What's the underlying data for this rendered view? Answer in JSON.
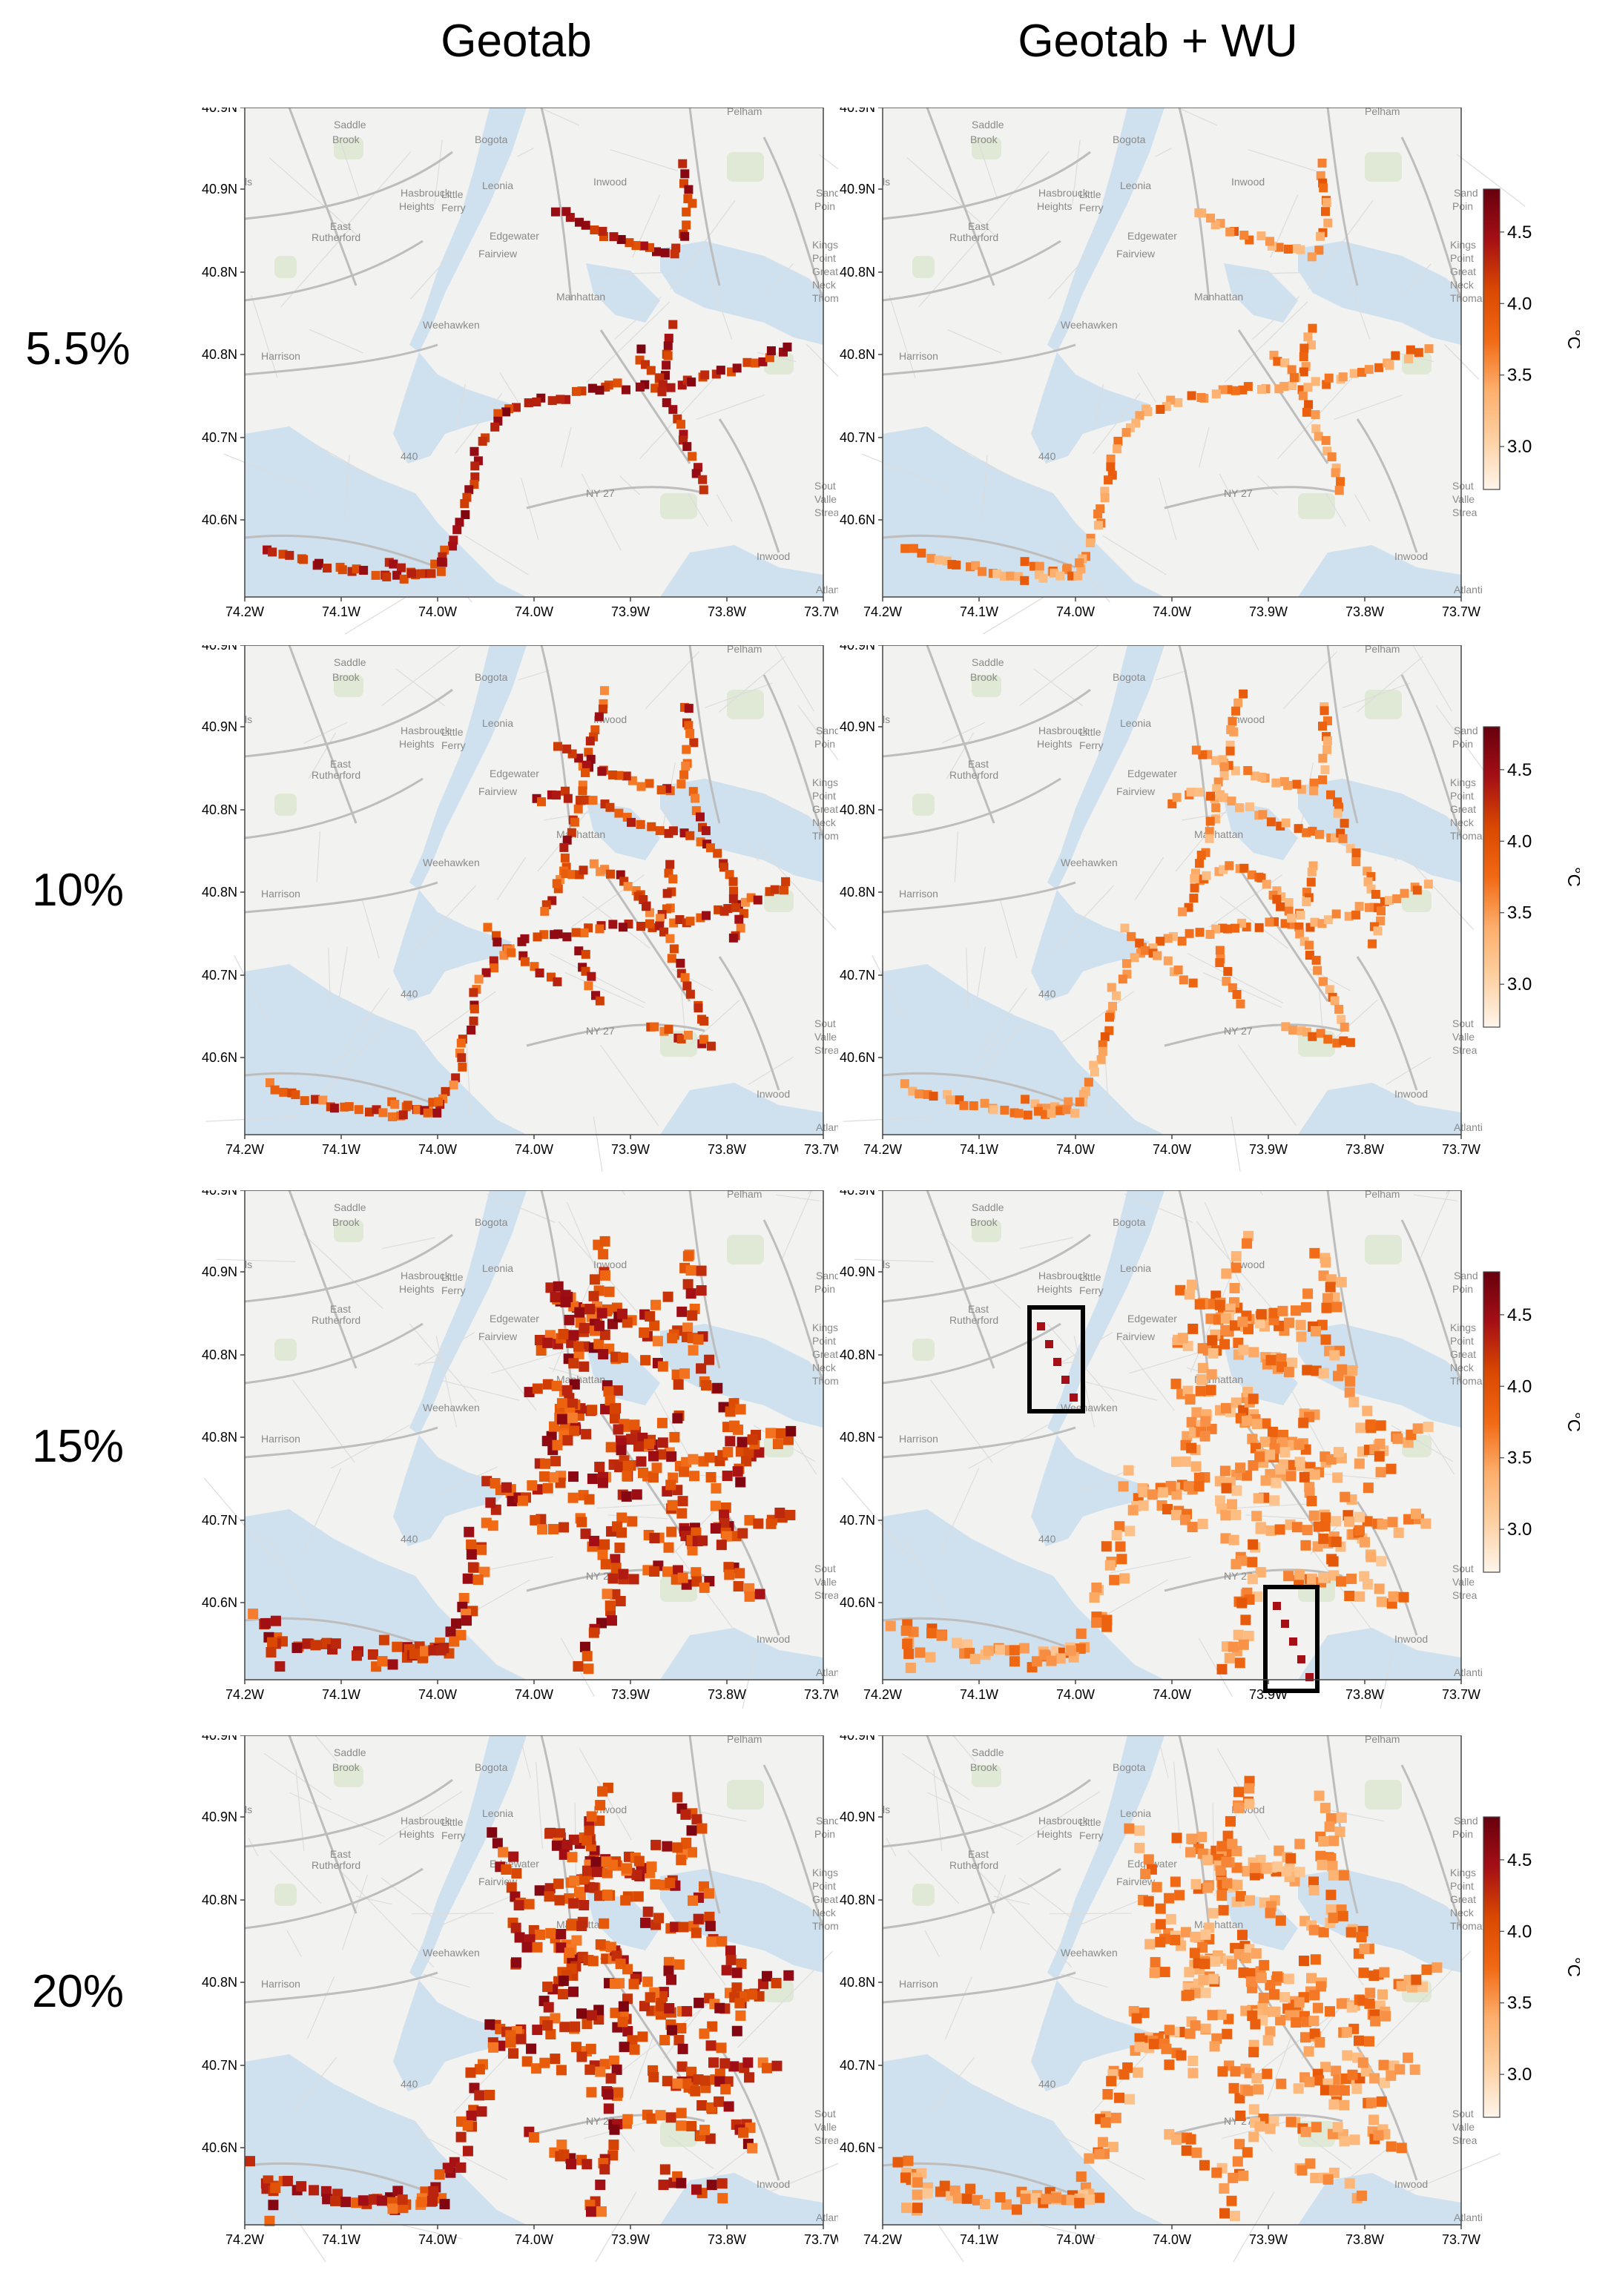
{
  "columns": [
    "Geotab",
    "Geotab + WU"
  ],
  "rows": [
    {
      "label": "5.5%"
    },
    {
      "label": "10%"
    },
    {
      "label": "15%"
    },
    {
      "label": "20%"
    }
  ],
  "axes": {
    "lat_ticks": [
      "40.9N",
      "40.9N",
      "40.8N",
      "40.8N",
      "40.7N",
      "40.6N"
    ],
    "lon_ticks": [
      "74.2W",
      "74.1W",
      "74.0W",
      "74.0W",
      "73.9W",
      "73.8W",
      "73.7W"
    ]
  },
  "colorbar": {
    "unit": "°C",
    "ticks": [
      "4.5",
      "4.0",
      "3.5",
      "3.0"
    ],
    "range": [
      2.7,
      4.8
    ],
    "colors": [
      "#fff5eb",
      "#fdd0a2",
      "#fdae6b",
      "#f16913",
      "#d94801",
      "#a50f15",
      "#67000d"
    ]
  },
  "map_labels": [
    {
      "text": "Saddle"
    },
    {
      "text": "Brook"
    },
    {
      "text": "Bogota"
    },
    {
      "text": "Hasbrouck"
    },
    {
      "text": "Heights"
    },
    {
      "text": "Little"
    },
    {
      "text": "Ferry"
    },
    {
      "text": "Leonia"
    },
    {
      "text": "Inwood"
    },
    {
      "text": "Pelham"
    },
    {
      "text": "East"
    },
    {
      "text": "Rutherford"
    },
    {
      "text": "Edgewater"
    },
    {
      "text": "Fairview"
    },
    {
      "text": "Manhattan"
    },
    {
      "text": "Weehawken"
    },
    {
      "text": "Harrison"
    },
    {
      "text": "Kings"
    },
    {
      "text": "Point"
    },
    {
      "text": "Great"
    },
    {
      "text": "Neck"
    },
    {
      "text": "Thoma"
    },
    {
      "text": "Sand"
    },
    {
      "text": "Poin"
    },
    {
      "text": "Sout"
    },
    {
      "text": "Valle"
    },
    {
      "text": "Strea"
    },
    {
      "text": "Inwood"
    },
    {
      "text": "Atlanti"
    },
    {
      "text": "440"
    },
    {
      "text": "NY 27"
    },
    {
      "text": "ls"
    }
  ],
  "highlight_note": "Black rectangles mark two isolated high-value clusters in the 15% Geotab + WU panel"
}
